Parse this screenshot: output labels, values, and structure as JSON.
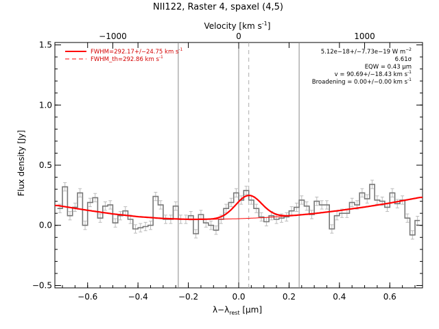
{
  "chart_data": {
    "type": "line",
    "title": "NII122, Raster 4, spaxel (4,5)",
    "xlabel": "λ−λ",
    "xlabel_sub": "rest",
    "xlabel_unit": " [μm]",
    "ylabel": "Flux density [Jy]",
    "top_axis_label": "Velocity [km s",
    "top_axis_label_sup": "-1",
    "top_axis_label_end": "]",
    "xlim": [
      -0.73,
      0.73
    ],
    "ylim": [
      -0.52,
      1.52
    ],
    "x_ticks": [
      {
        "value": -0.6,
        "label": "−0.6"
      },
      {
        "value": -0.4,
        "label": "−0.4"
      },
      {
        "value": -0.2,
        "label": "−0.2"
      },
      {
        "value": 0.0,
        "label": "0.0"
      },
      {
        "value": 0.2,
        "label": "0.2"
      },
      {
        "value": 0.4,
        "label": "0.4"
      },
      {
        "value": 0.6,
        "label": "0.6"
      }
    ],
    "y_ticks": [
      {
        "value": -0.5,
        "label": "−0.5"
      },
      {
        "value": 0.0,
        "label": "0.0"
      },
      {
        "value": 0.5,
        "label": "0.5"
      },
      {
        "value": 1.0,
        "label": "1.0"
      },
      {
        "value": 1.5,
        "label": "1.5"
      }
    ],
    "top_ticks": [
      {
        "value": -0.5,
        "label": "−1000"
      },
      {
        "value": 0.0,
        "label": "0"
      },
      {
        "value": 0.5,
        "label": "1000"
      }
    ],
    "vertical_lines": [
      -0.24,
      0.0,
      0.24
    ],
    "dashed_line_x": 0.04,
    "legend": [
      {
        "label": "FWHM=292.17+/−24.75 km s",
        "sup": "-1",
        "style": "solid",
        "color": "#ff0000"
      },
      {
        "label": "FWHM_th=292.86 km s",
        "sup": "-1",
        "style": "dashed",
        "color": "#ff0000"
      }
    ],
    "stats": [
      {
        "text": "5.12e−18+/−7.73e−19 W m",
        "sup": "−2"
      },
      {
        "text": "6.61σ",
        "sup": ""
      },
      {
        "text": "EQW = 0.43 μm",
        "sup": ""
      },
      {
        "text": "v = 90.69+/−18.43 km s",
        "sup": "-1"
      },
      {
        "text": "Broadening = 0.00+/−0.00 km s",
        "sup": "-1"
      }
    ],
    "series": [
      {
        "style": "histogram",
        "x": [
          -0.71,
          -0.69,
          -0.67,
          -0.65,
          -0.63,
          -0.61,
          -0.59,
          -0.57,
          -0.55,
          -0.53,
          -0.51,
          -0.49,
          -0.47,
          -0.45,
          -0.43,
          -0.41,
          -0.39,
          -0.37,
          -0.35,
          -0.33,
          -0.31,
          -0.29,
          -0.27,
          -0.25,
          -0.23,
          -0.21,
          -0.19,
          -0.17,
          -0.15,
          -0.13,
          -0.11,
          -0.09,
          -0.07,
          -0.05,
          -0.03,
          -0.01,
          0.01,
          0.03,
          0.05,
          0.07,
          0.09,
          0.11,
          0.13,
          0.15,
          0.17,
          0.19,
          0.21,
          0.23,
          0.25,
          0.27,
          0.29,
          0.31,
          0.33,
          0.35,
          0.37,
          0.39,
          0.41,
          0.43,
          0.45,
          0.47,
          0.49,
          0.51,
          0.53,
          0.55,
          0.57,
          0.59,
          0.61,
          0.63,
          0.65,
          0.67,
          0.69,
          0.71
        ],
        "values": [
          0.14,
          0.32,
          0.08,
          0.15,
          0.27,
          0.0,
          0.19,
          0.23,
          0.06,
          0.16,
          0.17,
          0.02,
          0.08,
          0.12,
          0.05,
          -0.03,
          -0.02,
          -0.01,
          0.0,
          0.24,
          0.17,
          0.05,
          0.05,
          0.16,
          0.05,
          0.05,
          0.08,
          -0.07,
          0.09,
          0.02,
          0.0,
          -0.04,
          0.05,
          0.14,
          0.19,
          0.27,
          0.21,
          0.29,
          0.21,
          0.14,
          0.07,
          0.03,
          0.08,
          0.05,
          0.06,
          0.07,
          0.12,
          0.15,
          0.21,
          0.16,
          0.09,
          0.2,
          0.17,
          0.17,
          -0.03,
          0.08,
          0.1,
          0.1,
          0.19,
          0.17,
          0.27,
          0.22,
          0.34,
          0.21,
          0.2,
          0.15,
          0.27,
          0.18,
          0.21,
          0.06,
          -0.08,
          0.04
        ]
      },
      {
        "style": "continuum",
        "color": "#ff0000",
        "x": [
          -0.72,
          -0.6,
          -0.5,
          -0.4,
          -0.3,
          -0.2,
          -0.1,
          0.0,
          0.1,
          0.2,
          0.3,
          0.4,
          0.5,
          0.6,
          0.72
        ],
        "values": [
          0.165,
          0.125,
          0.095,
          0.072,
          0.057,
          0.05,
          0.05,
          0.055,
          0.064,
          0.078,
          0.098,
          0.123,
          0.152,
          0.185,
          0.232
        ]
      },
      {
        "style": "fit",
        "color": "#ff0000",
        "line_center": 0.04,
        "line_peak": 0.19,
        "line_sigma": 0.052
      }
    ]
  }
}
